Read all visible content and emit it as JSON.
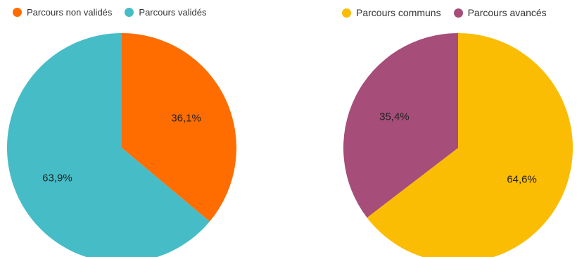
{
  "chart_data": [
    {
      "type": "pie",
      "legend_position": "top-left",
      "slices": [
        {
          "label": "Parcours non validés",
          "value": 36.1,
          "display": "36,1%",
          "color": "#ff6d01"
        },
        {
          "label": "Parcours validés",
          "value": 63.9,
          "display": "63,9%",
          "color": "#46bdc6"
        }
      ]
    },
    {
      "type": "pie",
      "legend_position": "top-left",
      "slices": [
        {
          "label": "Parcours communs",
          "value": 64.6,
          "display": "64,6%",
          "color": "#fbbc04"
        },
        {
          "label": "Parcours avancés",
          "value": 35.4,
          "display": "35,4%",
          "color": "#a64d79"
        }
      ]
    }
  ]
}
